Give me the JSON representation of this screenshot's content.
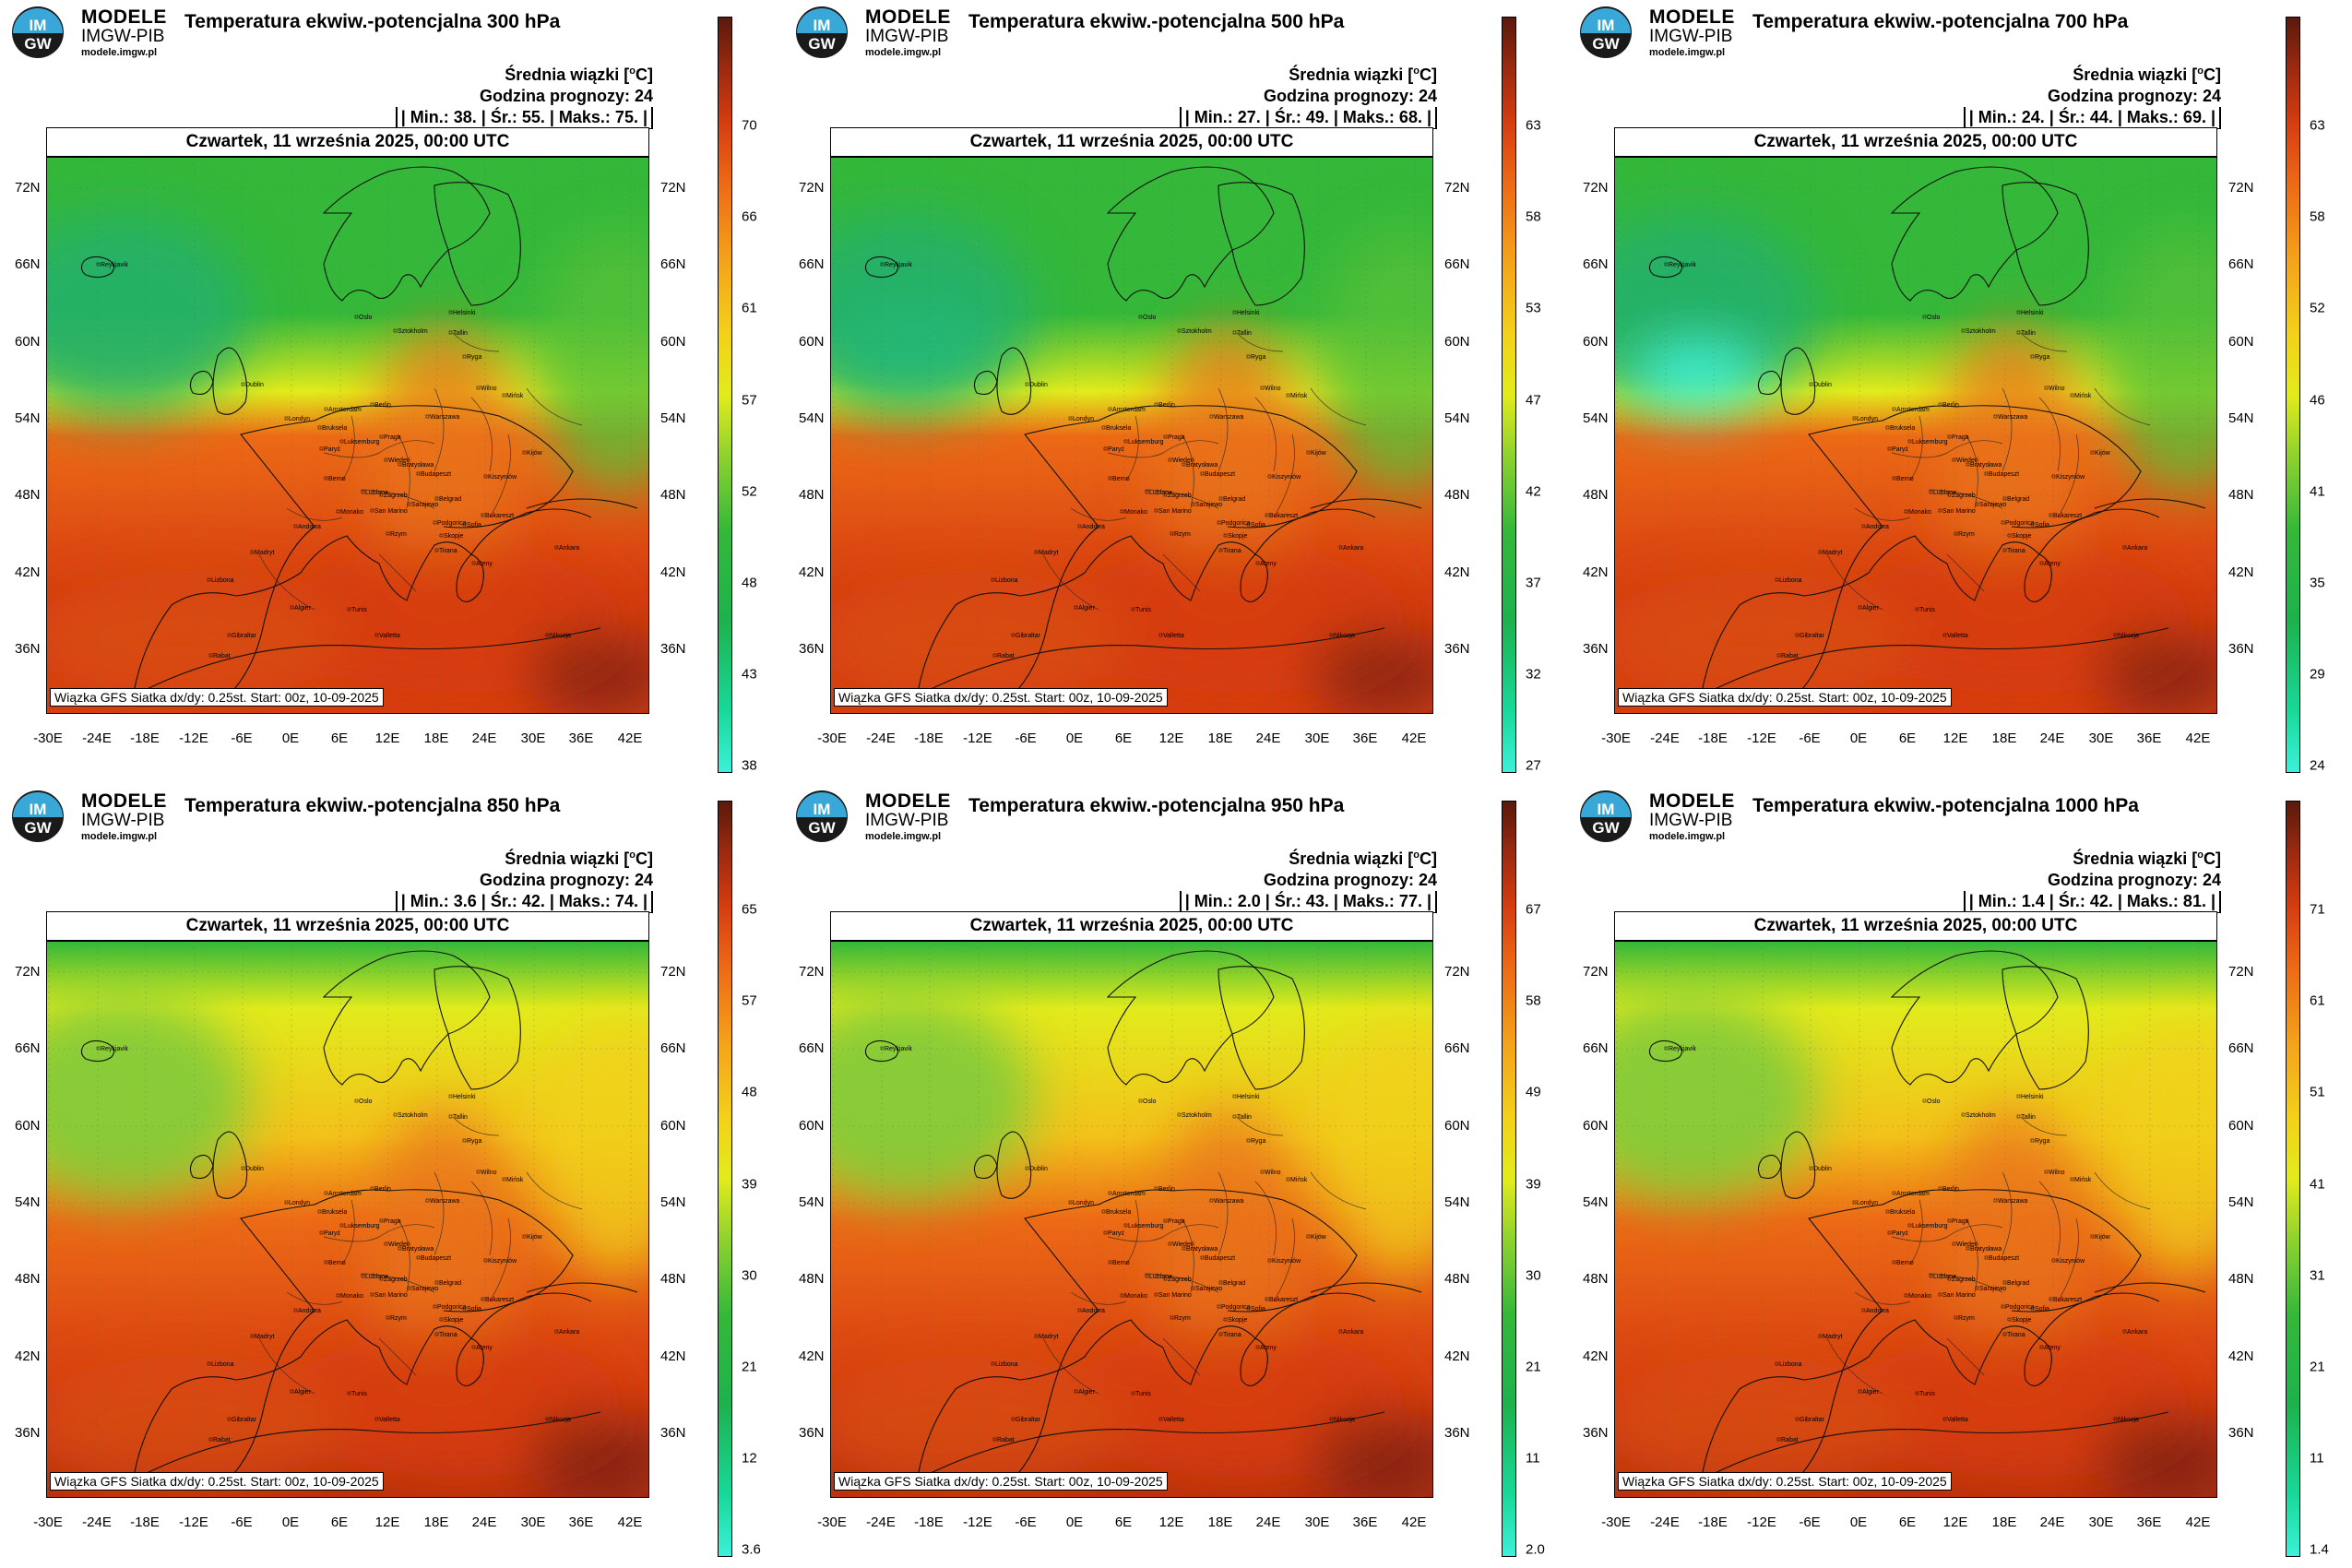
{
  "logo": {
    "line1": "MODELE",
    "line2": "IMGW-PIB",
    "line3": "modele.imgw.pl",
    "badge_text": "IM GW"
  },
  "common": {
    "info_line1": "Średnia wiązki [",
    "info_unit": "o",
    "info_unit_after": "C]",
    "info_line2": "Godzina prognozy: 24",
    "date": "Czwartek, 11 września 2025, 00:00 UTC",
    "footer": "Wiązka GFS Siatka dx/dy: 0.25st. Start: 00z, 10-09-2025",
    "lat_labels": [
      "72N",
      "66N",
      "60N",
      "54N",
      "48N",
      "42N",
      "36N"
    ],
    "lon_labels": [
      "-30E",
      "-24E",
      "-18E",
      "-12E",
      "-6E",
      "0E",
      "6E",
      "12E",
      "18E",
      "24E",
      "30E",
      "36E",
      "42E"
    ],
    "cities": [
      "Reykjavik",
      "Oslo",
      "Sztokholm",
      "Helsinki",
      "Tallin",
      "Ryga",
      "Wilno",
      "Mińsk",
      "Dublin",
      "Londyn",
      "Amsterdam",
      "Bruksela",
      "Berlin",
      "Warszawa",
      "Paryż",
      "Luksemburg",
      "Praga",
      "Kijów",
      "Berno",
      "Wiedeń",
      "Bratysława",
      "Budapeszt",
      "Kiszyniów",
      "Lublana",
      "Zagrzeb",
      "Belgrad",
      "Bukareszt",
      "Sarajewo",
      "Monako",
      "San Marino",
      "Podgorica",
      "Sofia",
      "Andorra",
      "Rzym",
      "Skopje",
      "Madryt",
      "Tirana",
      "Ateny",
      "Ankara",
      "Lizbona",
      "Algier",
      "Tunis",
      "Valletta",
      "Gibraltar",
      "Rabat",
      "Nikozja"
    ],
    "colors": {
      "cold": "#3df0d8",
      "green": "#35b83a",
      "yellow": "#e2eb1c",
      "orange": "#ec6a16",
      "red": "#d63d10",
      "dark": "#5a1a0c"
    }
  },
  "panels": [
    {
      "title": "Temperatura ekwiw.-potencjalna 300 hPa",
      "stats": "| Min.: 38. | Śr.: 55. | Maks.: 75. |",
      "ticks": [
        "70",
        "66",
        "61",
        "57",
        "52",
        "48",
        "43",
        "38"
      ],
      "warmth": 0.55
    },
    {
      "title": "Temperatura ekwiw.-potencjalna 500 hPa",
      "stats": "| Min.: 27. | Śr.: 49. | Maks.: 68. |",
      "ticks": [
        "63",
        "58",
        "53",
        "47",
        "42",
        "37",
        "32",
        "27"
      ],
      "warmth": 0.6
    },
    {
      "title": "Temperatura ekwiw.-potencjalna 700 hPa",
      "stats": "| Min.: 24. | Śr.: 44. | Maks.: 69. |",
      "ticks": [
        "63",
        "58",
        "52",
        "46",
        "41",
        "35",
        "29",
        "24"
      ],
      "warmth": 0.5
    },
    {
      "title": "Temperatura ekwiw.-potencjalna 850 hPa",
      "stats": "| Min.: 3.6 | Śr.: 42. | Maks.: 74. |",
      "ticks": [
        "65",
        "57",
        "48",
        "39",
        "30",
        "21",
        "12",
        "3.6"
      ],
      "warmth": 0.7
    },
    {
      "title": "Temperatura ekwiw.-potencjalna 950 hPa",
      "stats": "| Min.: 2.0 | Śr.: 43. | Maks.: 77. |",
      "ticks": [
        "67",
        "58",
        "49",
        "39",
        "30",
        "21",
        "11",
        "2.0"
      ],
      "warmth": 0.72
    },
    {
      "title": "Temperatura ekwiw.-potencjalna 1000 hPa",
      "stats": "| Min.: 1.4 | Śr.: 42. | Maks.: 81. |",
      "ticks": [
        "71",
        "61",
        "51",
        "41",
        "31",
        "21",
        "11",
        "1.4"
      ],
      "warmth": 0.72
    }
  ]
}
